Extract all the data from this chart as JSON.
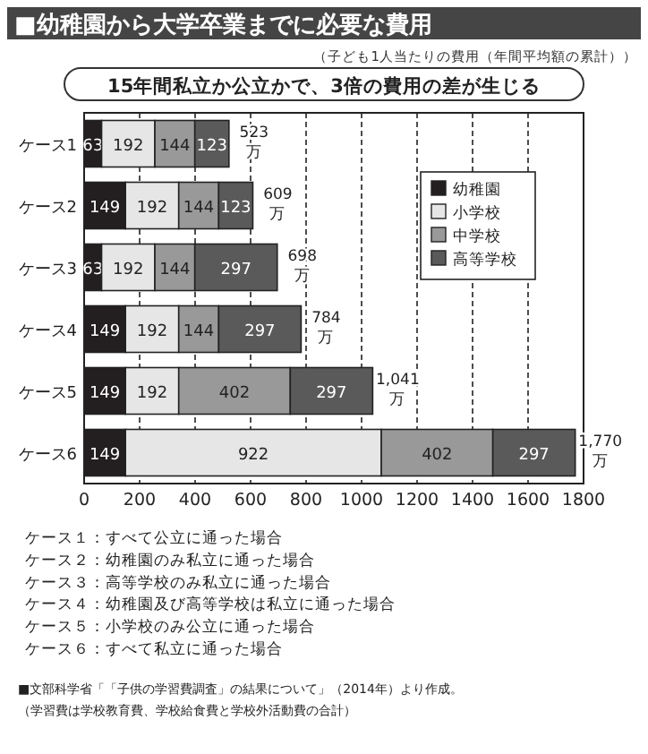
{
  "chart_data": {
    "type": "bar",
    "orientation": "horizontal",
    "stacked": true,
    "title": "■幼稚園から大学卒業までに必要な費用",
    "subtitle": "（子ども1人当たりの費用（年間平均額の累計））",
    "categories": [
      "ケース1",
      "ケース2",
      "ケース3",
      "ケース4",
      "ケース5",
      "ケース6"
    ],
    "series": [
      {
        "name": "幼稚園",
        "color": "#231f20",
        "values": [
          63,
          149,
          63,
          149,
          149,
          149
        ]
      },
      {
        "name": "小学校",
        "color": "#e6e6e6",
        "values": [
          192,
          192,
          192,
          192,
          192,
          922
        ]
      },
      {
        "name": "中学校",
        "color": "#999999",
        "values": [
          144,
          144,
          144,
          144,
          402,
          402
        ]
      },
      {
        "name": "高等学校",
        "color": "#5a5a5a",
        "values": [
          123,
          123,
          297,
          297,
          297,
          297
        ]
      }
    ],
    "totals": [
      "523\n万",
      "609\n万",
      "698\n万",
      "784\n万",
      "1,041\n万",
      "1,770\n万"
    ],
    "data_labels": true,
    "xlim": [
      0,
      1800
    ],
    "xticks": [
      0,
      200,
      400,
      600,
      800,
      1000,
      1200,
      1400,
      1600,
      1800
    ],
    "grid": "x",
    "legend": "top right",
    "annotations": [
      "15年間私立か公立かで、3倍の費用の差が生じる",
      "ケース１：すべて公立に通った場合",
      "ケース２：幼稚園のみ私立に通った場合",
      "ケース３：高等学校のみ私立に通った場合",
      "ケース４：幼稚園及び高等学校は私立に通った場合",
      "ケース５：小学校のみ公立に通った場合",
      "ケース６：すべて私立に通った場合",
      "■文部科学省「「子供の学習費調査」の結果について」（2014年）より作成。",
      "（学習費は学校教育費、学校給食費と学校外活動費の合計）"
    ]
  }
}
